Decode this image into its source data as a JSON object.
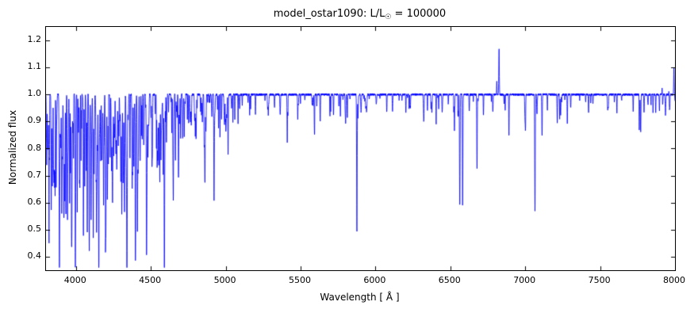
{
  "chart_data": {
    "type": "line",
    "title_prefix": "model_ostar1090: L/L",
    "title_sub": "☉",
    "title_suffix": " = 100000",
    "xlabel": "Wavelength [ Å ]",
    "ylabel": "Normalized flux",
    "xlim": [
      3800,
      8000
    ],
    "ylim": [
      0.35,
      1.25
    ],
    "xticks": {
      "values": [
        4000,
        4500,
        5000,
        5500,
        6000,
        6500,
        7000,
        7500,
        8000
      ],
      "labels": [
        "4000",
        "4500",
        "5000",
        "5500",
        "6000",
        "6500",
        "7000",
        "7500",
        "8000"
      ]
    },
    "yticks": {
      "values": [
        0.4,
        0.5,
        0.6,
        0.7,
        0.8,
        0.9,
        1.0,
        1.1,
        1.2
      ],
      "labels": [
        "0.4",
        "0.5",
        "0.6",
        "0.7",
        "0.8",
        "0.9",
        "1.0",
        "1.1",
        "1.2"
      ]
    },
    "grid": false,
    "legend": null,
    "line_color": "#0000ff",
    "axes_color": "#000000",
    "background": "#ffffff",
    "continuum_flux": 1.0,
    "noise_amplitude": 0.004,
    "absorption_lines": [
      [
        3805,
        0.75,
        1.2
      ],
      [
        3820,
        0.7,
        1.3
      ],
      [
        3835,
        0.58,
        1.5
      ],
      [
        3850,
        0.82,
        1.2
      ],
      [
        3868,
        0.75,
        1.3
      ],
      [
        3889,
        0.55,
        1.8
      ],
      [
        3905,
        0.85,
        1.2
      ],
      [
        3926,
        0.78,
        1.3
      ],
      [
        3933,
        0.82,
        1.2
      ],
      [
        3964,
        0.76,
        1.3
      ],
      [
        3970,
        0.6,
        1.8
      ],
      [
        3995,
        0.85,
        1.2
      ],
      [
        4009,
        0.8,
        1.3
      ],
      [
        4026,
        0.66,
        1.6
      ],
      [
        4069,
        0.78,
        1.3
      ],
      [
        4076,
        0.82,
        1.2
      ],
      [
        4089,
        0.42,
        1.8
      ],
      [
        4101,
        0.54,
        2.2
      ],
      [
        4116,
        0.72,
        1.4
      ],
      [
        4121,
        0.78,
        1.3
      ],
      [
        4144,
        0.82,
        1.3
      ],
      [
        4153,
        0.86,
        1.2
      ],
      [
        4200,
        0.71,
        1.4
      ],
      [
        4253,
        0.88,
        1.2
      ],
      [
        4267,
        0.84,
        1.2
      ],
      [
        4317,
        0.86,
        1.2
      ],
      [
        4340,
        0.52,
        2.2
      ],
      [
        4379,
        0.78,
        1.4
      ],
      [
        4387,
        0.76,
        1.4
      ],
      [
        4415,
        0.84,
        1.3
      ],
      [
        4437,
        0.9,
        1.2
      ],
      [
        4471,
        0.53,
        1.8
      ],
      [
        4481,
        0.86,
        1.2
      ],
      [
        4511,
        0.85,
        1.2
      ],
      [
        4542,
        0.75,
        1.5
      ],
      [
        4553,
        0.79,
        1.3
      ],
      [
        4568,
        0.84,
        1.2
      ],
      [
        4590,
        0.86,
        1.2
      ],
      [
        4604,
        0.88,
        1.2
      ],
      [
        4640,
        0.86,
        1.3
      ],
      [
        4650,
        0.88,
        1.2
      ],
      [
        4686,
        0.79,
        1.5
      ],
      [
        4713,
        0.84,
        1.3
      ],
      [
        4861,
        0.69,
        2.0
      ],
      [
        4922,
        0.62,
        1.6
      ],
      [
        5016,
        0.78,
        1.5
      ],
      [
        5048,
        0.9,
        1.2
      ],
      [
        5160,
        0.92,
        1.2
      ],
      [
        5411,
        0.82,
        1.5
      ],
      [
        5592,
        0.88,
        1.4
      ],
      [
        5696,
        0.92,
        1.3
      ],
      [
        5801,
        0.9,
        1.3
      ],
      [
        5812,
        0.91,
        1.3
      ],
      [
        5876,
        0.49,
        1.8
      ],
      [
        6203,
        0.93,
        1.3
      ],
      [
        6347,
        0.94,
        1.3
      ],
      [
        6371,
        0.95,
        1.3
      ],
      [
        6527,
        0.92,
        1.4
      ],
      [
        6563,
        0.6,
        2.0
      ],
      [
        6582,
        0.59,
        1.8
      ],
      [
        6678,
        0.72,
        1.6
      ],
      [
        6721,
        0.92,
        1.4
      ],
      [
        6891,
        0.88,
        1.4
      ],
      [
        7002,
        0.92,
        1.4
      ],
      [
        7065,
        0.57,
        1.8
      ],
      [
        7281,
        0.89,
        1.5
      ],
      [
        7423,
        0.93,
        1.4
      ],
      [
        7612,
        0.93,
        1.4
      ],
      [
        7771,
        0.86,
        1.6
      ],
      [
        7896,
        0.94,
        1.4
      ]
    ],
    "emission_lines": [
      [
        6810,
        1.05,
        1.5
      ],
      [
        6825,
        1.17,
        1.8
      ],
      [
        7915,
        1.04,
        1.6
      ],
      [
        7960,
        1.03,
        1.4
      ],
      [
        7993,
        1.1,
        1.8
      ]
    ],
    "line_forest_regions": [
      {
        "from": 3800,
        "to": 4000,
        "count": 60,
        "dmin": 0.02,
        "dmax": 0.25
      },
      {
        "from": 4000,
        "to": 4400,
        "count": 110,
        "dmin": 0.02,
        "dmax": 0.25
      },
      {
        "from": 4400,
        "to": 4700,
        "count": 70,
        "dmin": 0.02,
        "dmax": 0.22
      },
      {
        "from": 4700,
        "to": 5100,
        "count": 45,
        "dmin": 0.02,
        "dmax": 0.14
      },
      {
        "from": 5100,
        "to": 5900,
        "count": 32,
        "dmin": 0.01,
        "dmax": 0.09
      },
      {
        "from": 5900,
        "to": 6500,
        "count": 26,
        "dmin": 0.01,
        "dmax": 0.07
      },
      {
        "from": 6500,
        "to": 7600,
        "count": 34,
        "dmin": 0.01,
        "dmax": 0.1
      },
      {
        "from": 7600,
        "to": 8000,
        "count": 18,
        "dmin": 0.01,
        "dmax": 0.07
      }
    ]
  }
}
